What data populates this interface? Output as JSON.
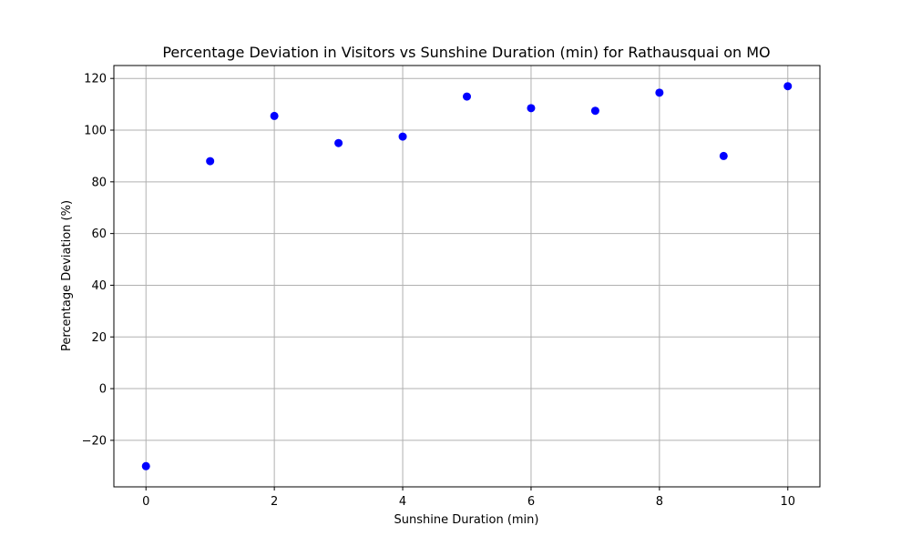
{
  "chart_data": {
    "type": "scatter",
    "title": "Percentage Deviation in Visitors vs Sunshine Duration (min) for Rathausquai on MO",
    "xlabel": "Sunshine Duration (min)",
    "ylabel": "Percentage Deviation (%)",
    "xlim": [
      -0.5,
      10.5
    ],
    "ylim": [
      -38,
      125
    ],
    "xticks": [
      0,
      2,
      4,
      6,
      8,
      10
    ],
    "xtick_labels": [
      "0",
      "2",
      "4",
      "6",
      "8",
      "10"
    ],
    "yticks": [
      -20,
      0,
      20,
      40,
      60,
      80,
      100,
      120
    ],
    "ytick_labels": [
      "−20",
      "0",
      "20",
      "40",
      "60",
      "80",
      "100",
      "120"
    ],
    "grid": true,
    "legend": "none",
    "series": [
      {
        "color": "#0000ff",
        "x": [
          0,
          1,
          2,
          3,
          4,
          5,
          6,
          7,
          8,
          9,
          10
        ],
        "y": [
          -30,
          88,
          105.5,
          95,
          97.5,
          113,
          108.5,
          107.5,
          114.5,
          90,
          117
        ]
      }
    ]
  }
}
